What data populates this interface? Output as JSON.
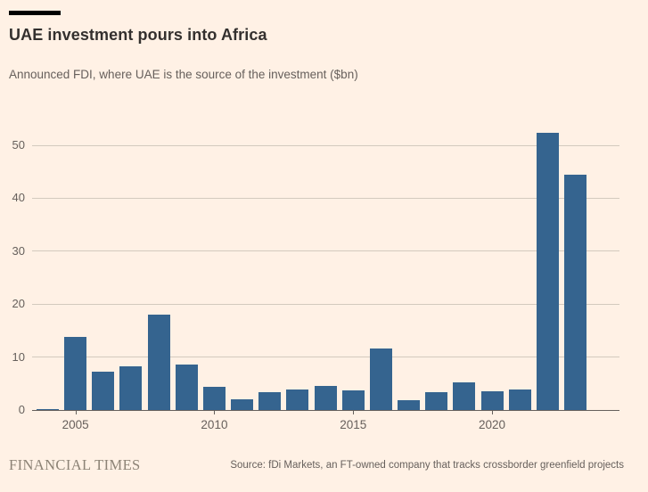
{
  "header": {
    "title": "UAE investment pours into Africa",
    "subtitle": "Announced FDI, where UAE is the source of the investment ($bn)"
  },
  "footer": {
    "brand": "FINANCIAL TIMES",
    "source": "Source: fDi Markets, an FT-owned company that tracks crossborder greenfield projects"
  },
  "colors": {
    "background": "#FFF1E5",
    "tag_bar": "#000000",
    "title": "#33302E",
    "text_muted": "#66605C",
    "gridline": "#D3CABE",
    "axis_line": "#66605C",
    "bar": "#35648F",
    "brand": "#8C8376"
  },
  "chart_data": {
    "type": "bar",
    "title": "UAE investment pours into Africa",
    "subtitle": "Announced FDI, where UAE is the source of the investment ($bn)",
    "unit": "$bn",
    "categories": [
      2004,
      2005,
      2006,
      2007,
      2008,
      2009,
      2010,
      2011,
      2012,
      2013,
      2014,
      2015,
      2016,
      2017,
      2018,
      2019,
      2020,
      2021,
      2022,
      2023
    ],
    "values": [
      0.2,
      13.8,
      7.3,
      8.3,
      18.0,
      8.6,
      4.4,
      2.0,
      3.3,
      3.9,
      4.5,
      3.7,
      11.6,
      1.8,
      3.3,
      5.3,
      3.6,
      3.9,
      52.4,
      44.5
    ],
    "xlabel": "",
    "ylabel": "",
    "ylim": [
      0,
      50
    ],
    "yticks": [
      0,
      10,
      20,
      30,
      40,
      50
    ],
    "xtick_labels": [
      "2005",
      "2010",
      "2015",
      "2020"
    ],
    "grid": true,
    "legend": "none"
  }
}
